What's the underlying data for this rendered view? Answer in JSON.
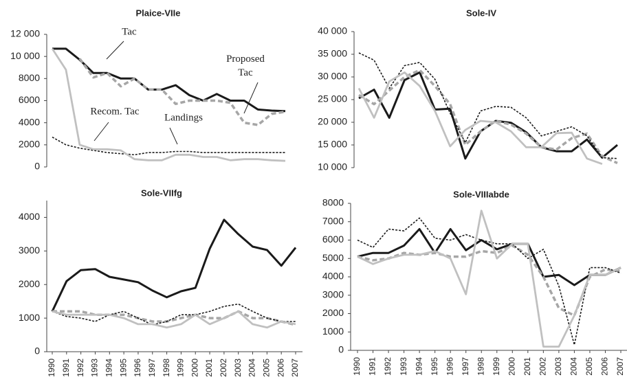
{
  "chart_data": [
    {
      "type": "line",
      "title": "Plaice-VIIe",
      "categories": [
        null,
        null,
        null,
        null,
        null,
        null,
        null,
        null,
        null,
        null,
        null,
        null,
        null,
        null,
        null,
        null,
        null,
        null
      ],
      "ylim": [
        0,
        12000
      ],
      "yticks": [
        0,
        2000,
        4000,
        6000,
        8000,
        {
          "value": 10000,
          "label": "10 000"
        },
        {
          "value": 12000,
          "label": "12 000"
        }
      ],
      "series": [
        {
          "name": "Tac",
          "color": "#1a1a1a",
          "style": "solid",
          "values": [
            10700,
            10700,
            9700,
            8500,
            8500,
            8000,
            8000,
            7000,
            7000,
            7400,
            6500,
            6000,
            6600,
            6000,
            6000,
            5200,
            5100,
            5050
          ]
        },
        {
          "name": "Proposed Tac",
          "color": "#a6a6a6",
          "style": "dashed",
          "values": [
            null,
            null,
            9800,
            8100,
            8500,
            7300,
            8000,
            7000,
            7000,
            5700,
            6000,
            6000,
            6000,
            5800,
            4000,
            3800,
            4800,
            5000
          ]
        },
        {
          "name": "Recom. Tac",
          "color": "#1a1a1a",
          "style": "dotted",
          "values": [
            2700,
            2000,
            1700,
            1500,
            1300,
            1200,
            1100,
            1300,
            1300,
            1400,
            1400,
            1300,
            1300,
            1300,
            1300,
            1300,
            1300,
            1300
          ]
        },
        {
          "name": "Landings",
          "color": "#c0c0c0",
          "style": "light",
          "values": [
            10700,
            8800,
            2000,
            1600,
            1600,
            1500,
            700,
            600,
            600,
            1100,
            1100,
            900,
            900,
            600,
            700,
            700,
            600,
            550
          ]
        }
      ]
    },
    {
      "type": "line",
      "title": "Sole-IV",
      "categories": [
        null,
        null,
        null,
        null,
        null,
        null,
        null,
        null,
        null,
        null,
        null,
        null,
        null,
        null,
        null,
        null,
        null,
        null
      ],
      "ylim": [
        10000,
        40000
      ],
      "yticks": [
        {
          "value": 10000,
          "label": "10 000"
        },
        {
          "value": 15000,
          "label": "15 000"
        },
        {
          "value": 20000,
          "label": "20 000"
        },
        {
          "value": 25000,
          "label": "25 000"
        },
        {
          "value": 30000,
          "label": "30 000"
        },
        {
          "value": 35000,
          "label": "35 000"
        },
        {
          "value": 40000,
          "label": "40 000"
        }
      ],
      "series": [
        {
          "color": "#1a1a1a",
          "style": "solid",
          "values": [
            25300,
            27200,
            21000,
            29300,
            31000,
            22800,
            23000,
            12000,
            18000,
            20300,
            19900,
            17800,
            14500,
            13600,
            13600,
            16200,
            12200,
            15000
          ]
        },
        {
          "color": "#a6a6a6",
          "style": "dashed",
          "values": [
            26000,
            24000,
            27000,
            30000,
            31500,
            28000,
            24000,
            15000,
            18000,
            20300,
            19500,
            17500,
            14500,
            14000,
            16500,
            17500,
            12500,
            11000
          ]
        },
        {
          "color": "#1a1a1a",
          "style": "dotted",
          "values": [
            35300,
            33700,
            27500,
            32500,
            33200,
            29500,
            22000,
            15500,
            22500,
            23500,
            23300,
            21000,
            17000,
            18000,
            19000,
            17000,
            12200,
            12000
          ]
        },
        {
          "color": "#c0c0c0",
          "style": "light",
          "values": [
            27500,
            21000,
            29000,
            31000,
            28000,
            22500,
            14700,
            18300,
            20300,
            20000,
            18000,
            14500,
            14500,
            17600,
            17700,
            12000,
            10800,
            null
          ]
        }
      ]
    },
    {
      "type": "line",
      "title": "Sole-VIIfg",
      "categories": [
        "1990",
        "1991",
        "1992",
        "1993",
        "1994",
        "1995",
        "1996",
        "1997",
        "1998",
        "1999",
        "2000",
        "2001",
        "2002",
        "2003",
        "2004",
        "2005",
        "2006",
        "2007"
      ],
      "ylim": [
        0,
        4500
      ],
      "yticks": [
        0,
        1000,
        2000,
        3000,
        4000
      ],
      "series": [
        {
          "color": "#1a1a1a",
          "style": "solid",
          "values": [
            1200,
            2100,
            2430,
            2460,
            2230,
            2150,
            2070,
            1820,
            1620,
            1800,
            1900,
            3070,
            3930,
            3500,
            3130,
            3030,
            2560,
            3100
          ]
        },
        {
          "color": "#a6a6a6",
          "style": "dashed",
          "values": [
            1200,
            1200,
            1200,
            1100,
            1100,
            1100,
            1000,
            900,
            900,
            1000,
            1100,
            1000,
            1000,
            1200,
            1000,
            1000,
            900,
            800
          ]
        },
        {
          "color": "#1a1a1a",
          "style": "dotted",
          "values": [
            1200,
            1050,
            1000,
            900,
            1100,
            1200,
            1000,
            800,
            900,
            1100,
            1100,
            1200,
            1350,
            1420,
            1200,
            1000,
            900,
            900
          ]
        },
        {
          "color": "#c0c0c0",
          "style": "light",
          "values": [
            1200,
            1100,
            1100,
            1100,
            1100,
            1000,
            820,
            820,
            720,
            820,
            1100,
            820,
            1000,
            1200,
            820,
            720,
            900,
            820
          ]
        }
      ]
    },
    {
      "type": "line",
      "title": "Sole-VIIIabde",
      "categories": [
        "1990",
        "1991",
        "1992",
        "1993",
        "1994",
        "1995",
        "1996",
        "1997",
        "1998",
        "1999",
        "2000",
        "2001",
        "2002",
        "2003",
        "2004",
        "2005",
        "2006",
        "2007"
      ],
      "ylim": [
        0,
        8000
      ],
      "yticks": [
        0,
        1000,
        2000,
        3000,
        4000,
        5000,
        6000,
        7000,
        8000
      ],
      "series": [
        {
          "color": "#1a1a1a",
          "style": "solid",
          "values": [
            5100,
            5300,
            5300,
            5700,
            6600,
            5300,
            6600,
            5450,
            6000,
            5500,
            5800,
            5800,
            4000,
            4100,
            3550,
            4100,
            4100,
            4500
          ]
        },
        {
          "color": "#a6a6a6",
          "style": "dashed",
          "values": [
            5100,
            4900,
            5000,
            5300,
            5200,
            5300,
            5100,
            5100,
            5400,
            5300,
            5700,
            5200,
            4000,
            2300,
            1900,
            4000,
            4400,
            4300
          ]
        },
        {
          "color": "#1a1a1a",
          "style": "dotted",
          "values": [
            6000,
            5600,
            6600,
            6500,
            7200,
            6100,
            6000,
            6300,
            6000,
            5800,
            5800,
            5000,
            5500,
            3500,
            300,
            4500,
            4500,
            4200
          ]
        },
        {
          "color": "#c0c0c0",
          "style": "light",
          "values": [
            5100,
            4700,
            5000,
            5200,
            5200,
            5400,
            5000,
            3050,
            7600,
            5000,
            5800,
            5800,
            200,
            200,
            1900,
            4100,
            4100,
            4500
          ]
        }
      ]
    }
  ]
}
